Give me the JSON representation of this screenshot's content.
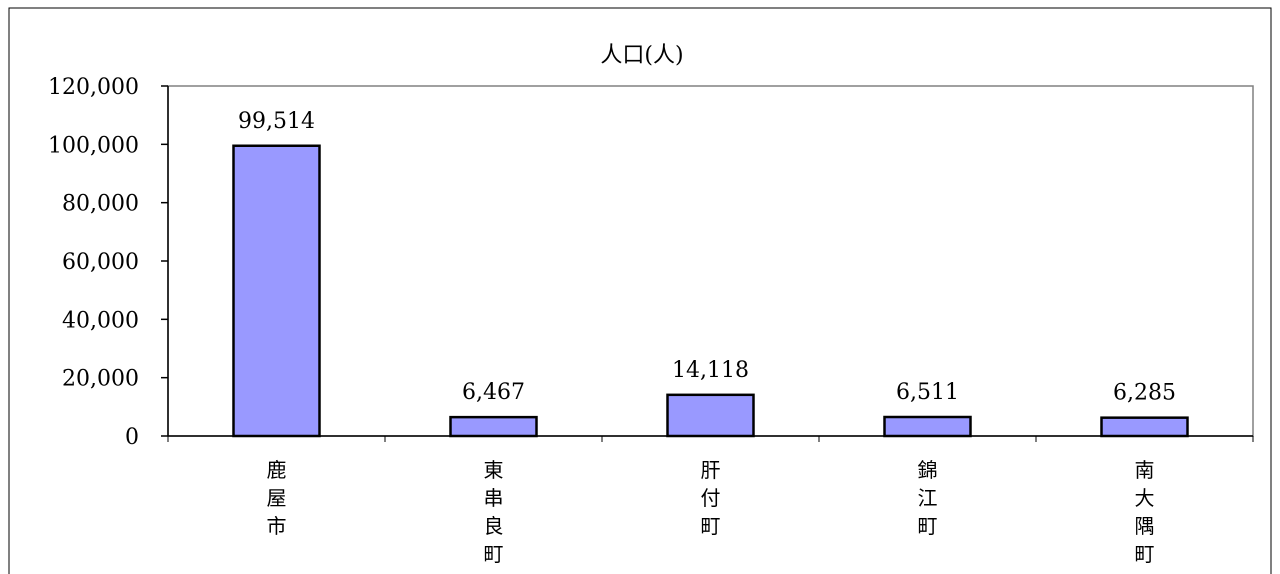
{
  "chart_data": {
    "type": "bar",
    "title": "人口(人)",
    "categories": [
      "鹿屋市",
      "東串良町",
      "肝付町",
      "錦江町",
      "南大隅町"
    ],
    "values": [
      99514,
      6467,
      14118,
      6511,
      6285
    ],
    "value_labels": [
      "99,514",
      "6,467",
      "14,118",
      "6,511",
      "6,285"
    ],
    "y_ticks": [
      "0",
      "20,000",
      "40,000",
      "60,000",
      "80,000",
      "100,000",
      "120,000"
    ],
    "ylim": [
      0,
      120000
    ],
    "xlabel": "",
    "ylabel": "",
    "grid": false,
    "legend": "none",
    "bar_color": "#9999ff",
    "bar_border_color": "#000000"
  }
}
